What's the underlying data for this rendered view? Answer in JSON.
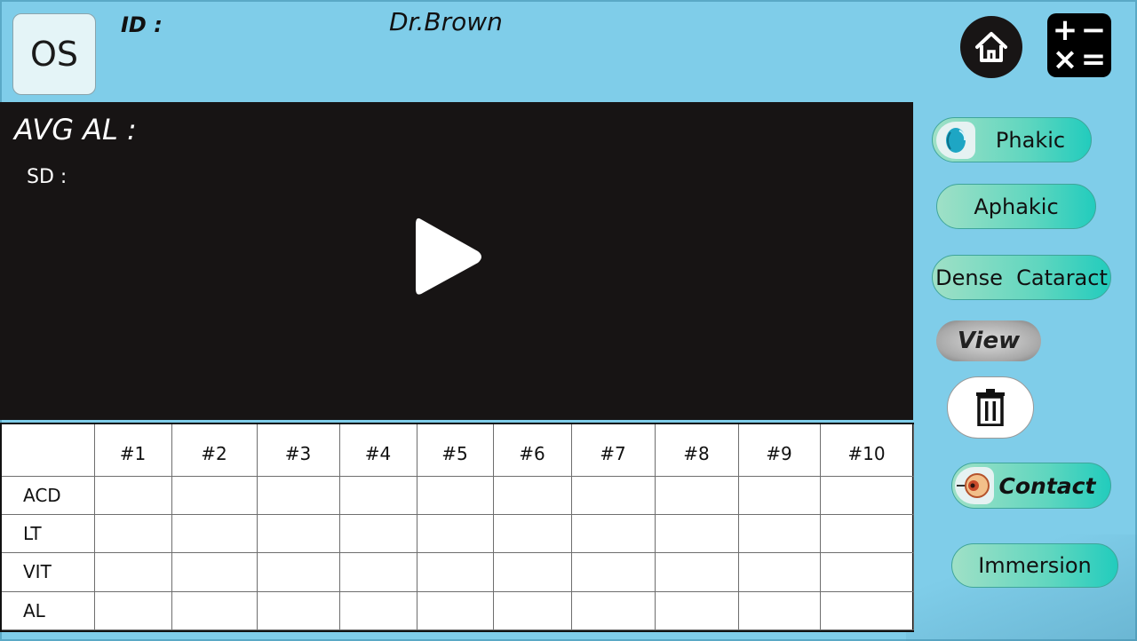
{
  "header": {
    "eye_side": "OS",
    "id_label": "ID :",
    "doctor": "Dr.Brown"
  },
  "icons": {
    "home": "home-icon",
    "calculator": "calculator-icon",
    "play": "play-icon",
    "trash": "trash-icon",
    "phakic": "lens-icon",
    "contact": "eye-probe-icon"
  },
  "calculator": {
    "plus": "+",
    "minus": "−",
    "times": "×",
    "equals": "="
  },
  "video": {
    "avg_al_label": "AVG AL :",
    "sd_label": "SD :"
  },
  "table": {
    "columns": [
      "#1",
      "#2",
      "#3",
      "#4",
      "#5",
      "#6",
      "#7",
      "#8",
      "#9",
      "#10"
    ],
    "rows": [
      "ACD",
      "LT",
      "VIT",
      "AL"
    ]
  },
  "side_buttons": {
    "phakic": "Phakic",
    "aphakic": "Aphakic",
    "dense_cataract": "Dense  Cataract",
    "view": "View",
    "contact": "Contact",
    "immersion": "Immersion"
  },
  "colors": {
    "background": "#7fcde9",
    "video_bg": "#171414",
    "pill_accent": "#22ccbd"
  }
}
